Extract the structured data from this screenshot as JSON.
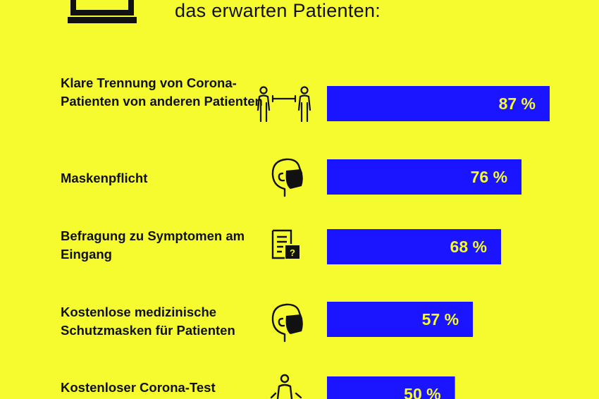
{
  "header": {
    "subtitle": "das erwarten Patienten:"
  },
  "colors": {
    "background": "#f5fb2f",
    "bar": "#1a14ff",
    "value_text": "#f5fb2f",
    "text": "#111111"
  },
  "chart_data": {
    "type": "bar",
    "orientation": "horizontal",
    "title": "",
    "xlabel": "",
    "ylabel": "",
    "xlim": [
      0,
      100
    ],
    "unit": "%",
    "grid": false,
    "categories": [
      "Klare Trennung von Corona-Patienten von anderen Patienten",
      "Maskenpflicht",
      "Befragung zu Symptomen am Eingang",
      "Kostenlose medizinische Schutzmasken für Patienten",
      "Kostenloser Corona-Test"
    ],
    "values": [
      87,
      76,
      68,
      57,
      50
    ],
    "value_labels": [
      "87 %",
      "76 %",
      "68 %",
      "57 %",
      "50 %"
    ],
    "icons": [
      "distance-icon",
      "mask-icon",
      "questionnaire-icon",
      "mask-icon",
      "test-person-icon"
    ]
  }
}
